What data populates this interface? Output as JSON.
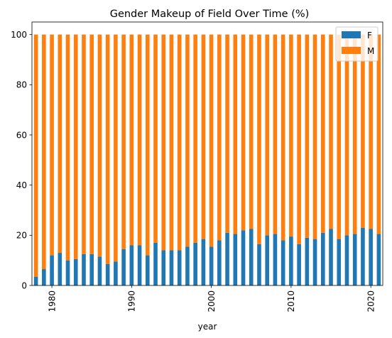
{
  "colors": {
    "F": "#1f77b4",
    "M": "#ff7f0e"
  },
  "chart_data": {
    "type": "bar",
    "stacked": true,
    "title": "Gender Makeup of Field Over Time (%)",
    "xlabel": "year",
    "ylabel": "",
    "ylim": [
      0,
      105
    ],
    "yticks": [
      0,
      20,
      40,
      60,
      80,
      100
    ],
    "xtick_years": [
      1980,
      1990,
      2000,
      2010,
      2020
    ],
    "legend_position": "top-right",
    "categories": [
      1978,
      1979,
      1980,
      1981,
      1982,
      1983,
      1984,
      1985,
      1986,
      1987,
      1988,
      1989,
      1990,
      1991,
      1992,
      1993,
      1994,
      1995,
      1996,
      1997,
      1998,
      1999,
      2000,
      2001,
      2002,
      2003,
      2004,
      2005,
      2006,
      2007,
      2008,
      2009,
      2010,
      2011,
      2012,
      2013,
      2014,
      2015,
      2016,
      2017,
      2018,
      2019,
      2020,
      2021
    ],
    "series": [
      {
        "name": "F",
        "values": [
          3.5,
          6.5,
          12.0,
          13.0,
          10.0,
          10.5,
          12.5,
          12.5,
          11.5,
          8.5,
          9.5,
          14.5,
          16.0,
          16.0,
          12.0,
          17.0,
          14.0,
          14.0,
          14.0,
          15.5,
          17.0,
          18.5,
          15.5,
          18.0,
          21.0,
          20.5,
          22.0,
          22.5,
          16.5,
          20.0,
          20.5,
          18.0,
          19.5,
          16.5,
          19.0,
          18.5,
          21.0,
          22.5,
          18.5,
          20.0,
          20.5,
          23.0,
          22.5,
          20.5
        ]
      },
      {
        "name": "M",
        "values": [
          96.5,
          93.5,
          88.0,
          87.0,
          90.0,
          89.5,
          87.5,
          87.5,
          88.5,
          91.5,
          90.5,
          85.5,
          84.0,
          84.0,
          88.0,
          83.0,
          86.0,
          86.0,
          86.0,
          84.5,
          83.0,
          81.5,
          84.5,
          82.0,
          79.0,
          79.5,
          78.0,
          77.5,
          83.5,
          80.0,
          79.5,
          82.0,
          80.5,
          83.5,
          81.0,
          81.5,
          79.0,
          77.5,
          81.5,
          80.0,
          79.5,
          77.0,
          77.5,
          79.5
        ]
      }
    ]
  }
}
